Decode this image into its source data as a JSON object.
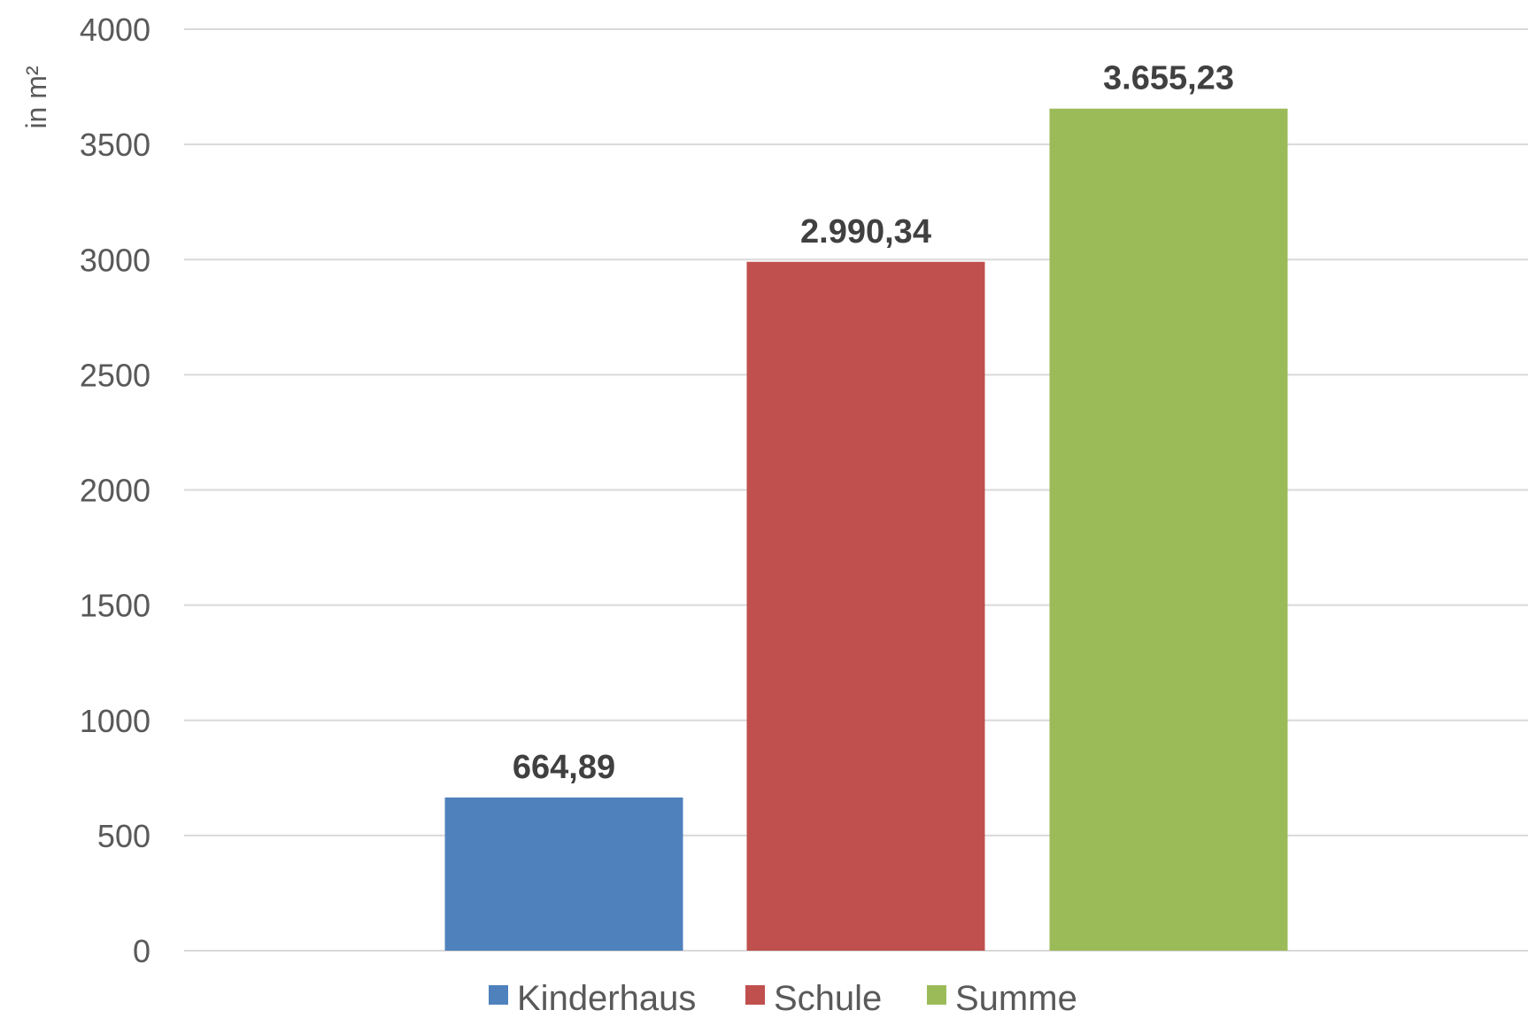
{
  "chart_data": {
    "type": "bar",
    "ylabel": "in m²",
    "ylim": [
      0,
      4000
    ],
    "yticks": [
      0,
      500,
      1000,
      1500,
      2000,
      2500,
      3000,
      3500,
      4000
    ],
    "grid": true,
    "legend_position": "bottom",
    "series": [
      {
        "name": "Kinderhaus",
        "value": 664.89,
        "label": "664,89",
        "color": "#4f81bd"
      },
      {
        "name": "Schule",
        "value": 2990.34,
        "label": "2.990,34",
        "color": "#c0504d"
      },
      {
        "name": "Summe",
        "value": 3655.23,
        "label": "3.655,23",
        "color": "#9bbb59"
      }
    ]
  }
}
